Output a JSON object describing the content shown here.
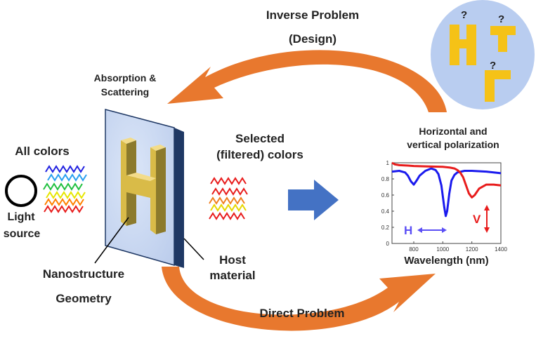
{
  "labels": {
    "inverse_problem": "Inverse Problem",
    "design": "(Design)",
    "absorption_line1": "Absorption &",
    "absorption_line2": "Scattering",
    "all_colors": "All colors",
    "light": "Light",
    "source": "source",
    "selected_line1": "Selected",
    "selected_line2": "(filtered) colors",
    "polarization_line1": "Horizontal and",
    "polarization_line2": "vertical polarization",
    "nanostructure": "Nanostructure",
    "geometry": "Geometry",
    "host_line1": "Host",
    "host_line2": "material",
    "direct_problem": "Direct Problem",
    "question_mark": "?"
  },
  "colors": {
    "arrow_orange": "#e8782e",
    "gold": "#f5c217",
    "panel_blue": "#c9d9f2",
    "panel_edge": "#1f3864",
    "bubble": "#b9cdf0",
    "big_arrow": "#4472c4",
    "series_h": "#1a1aee",
    "series_v": "#e81c1c",
    "h_arrow": "#5b4ff5"
  },
  "chart_data": {
    "type": "line",
    "xlabel": "Wavelength (nm)",
    "ylabel": "",
    "xlim": [
      650,
      1400
    ],
    "ylim": [
      0,
      1
    ],
    "x_ticks": [
      800,
      1000,
      1200,
      1400
    ],
    "y_ticks": [
      0,
      0.2,
      0.4,
      0.6,
      0.8,
      1
    ],
    "grid": false,
    "annotations": [
      {
        "text": "H",
        "color": "#5b4ff5"
      },
      {
        "text": "V",
        "color": "#e81c1c"
      }
    ],
    "series": [
      {
        "x": [
          650,
          700,
          740,
          760,
          780,
          800,
          820,
          840,
          880,
          920,
          950,
          970,
          990,
          1010,
          1020,
          1030,
          1045,
          1060,
          1080,
          1100,
          1150,
          1200,
          1300,
          1400
        ],
        "values": [
          0.89,
          0.9,
          0.88,
          0.84,
          0.77,
          0.73,
          0.78,
          0.84,
          0.9,
          0.93,
          0.91,
          0.86,
          0.72,
          0.45,
          0.34,
          0.4,
          0.62,
          0.78,
          0.85,
          0.88,
          0.9,
          0.9,
          0.89,
          0.87
        ],
        "color": "#1a1aee"
      },
      {
        "x": [
          650,
          670,
          700,
          760,
          800,
          900,
          1000,
          1050,
          1080,
          1100,
          1120,
          1140,
          1160,
          1180,
          1200,
          1220,
          1250,
          1300,
          1350,
          1400
        ],
        "values": [
          1.0,
          0.98,
          0.97,
          0.965,
          0.96,
          0.955,
          0.95,
          0.94,
          0.93,
          0.91,
          0.88,
          0.82,
          0.72,
          0.62,
          0.57,
          0.6,
          0.68,
          0.73,
          0.73,
          0.72
        ],
        "color": "#e81c1c"
      }
    ]
  }
}
